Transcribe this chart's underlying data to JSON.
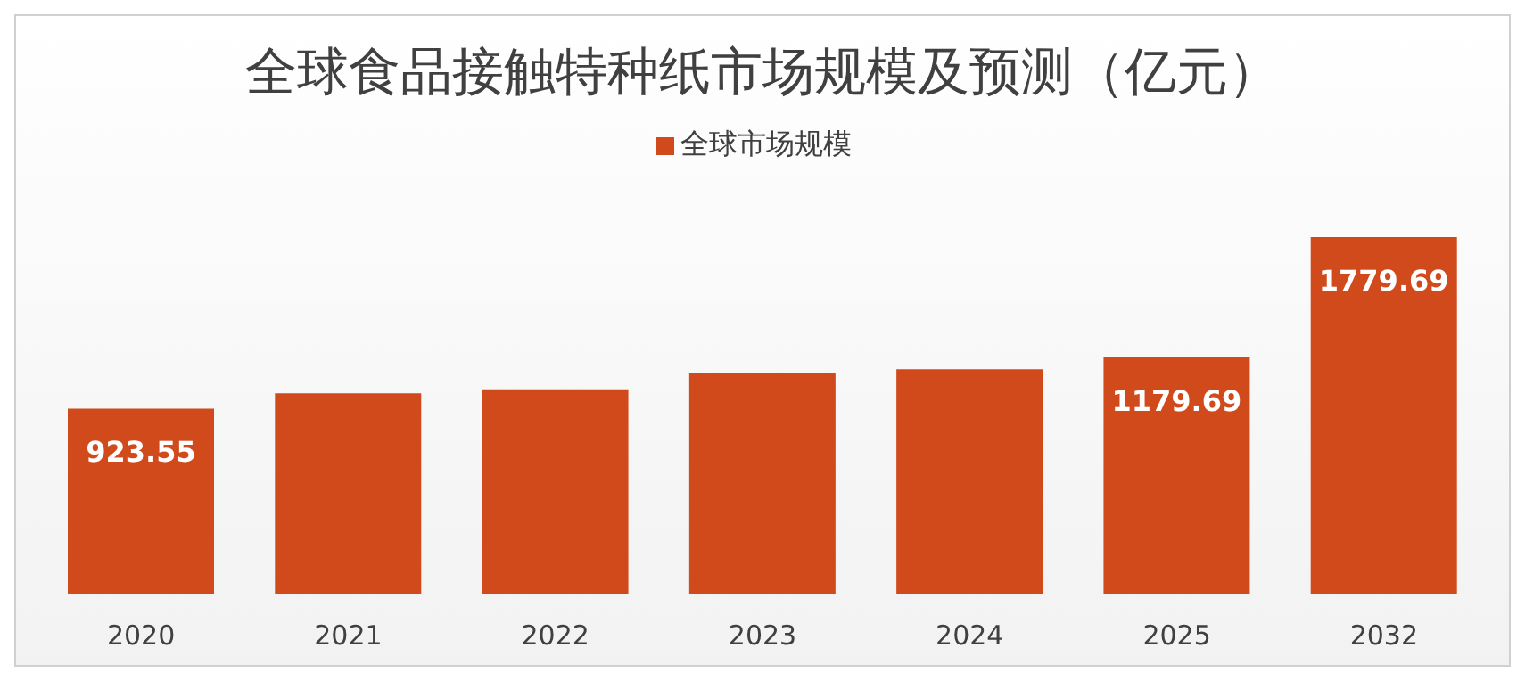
{
  "chart_data": {
    "type": "bar",
    "title": "全球食品接触特种纸市场规模及预测（亿元）",
    "categories": [
      "2020",
      "2021",
      "2022",
      "2023",
      "2024",
      "2025",
      "2032"
    ],
    "series": [
      {
        "name": "全球市场规模",
        "color": "#d04a1c",
        "values": [
          923.55,
          1000,
          1020,
          1100,
          1120,
          1179.69,
          1779.69
        ],
        "value_labels": [
          "923.55",
          null,
          null,
          null,
          null,
          "1179.69",
          "1779.69"
        ]
      }
    ],
    "legend": "top",
    "grid": false,
    "tick_labels": "x"
  }
}
